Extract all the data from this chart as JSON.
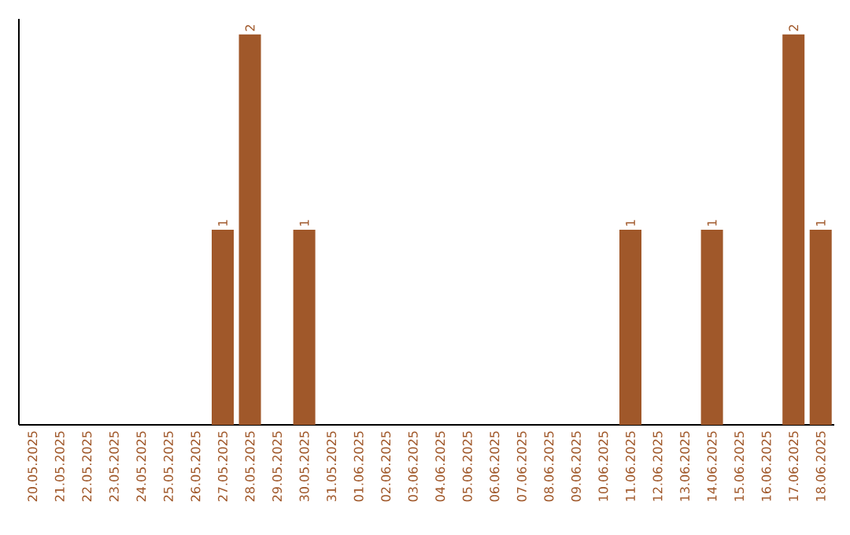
{
  "chart_data": {
    "type": "bar",
    "categories": [
      "20.05.2025",
      "21.05.2025",
      "22.05.2025",
      "23.05.2025",
      "24.05.2025",
      "25.05.2025",
      "26.05.2025",
      "27.05.2025",
      "28.05.2025",
      "29.05.2025",
      "30.05.2025",
      "31.05.2025",
      "01.06.2025",
      "02.06.2025",
      "03.06.2025",
      "04.06.2025",
      "05.06.2025",
      "06.06.2025",
      "07.06.2025",
      "08.06.2025",
      "09.06.2025",
      "10.06.2025",
      "11.06.2025",
      "12.06.2025",
      "13.06.2025",
      "14.06.2025",
      "15.06.2025",
      "16.06.2025",
      "17.06.2025",
      "18.06.2025"
    ],
    "values": [
      0,
      0,
      0,
      0,
      0,
      0,
      0,
      1,
      2,
      0,
      1,
      0,
      0,
      0,
      0,
      0,
      0,
      0,
      0,
      0,
      0,
      0,
      1,
      0,
      0,
      1,
      0,
      0,
      2,
      1
    ],
    "value_labels": [
      null,
      null,
      null,
      null,
      null,
      null,
      null,
      "1",
      "2",
      null,
      "1",
      null,
      null,
      null,
      null,
      null,
      null,
      null,
      null,
      null,
      null,
      null,
      "1",
      null,
      null,
      "1",
      null,
      null,
      "2",
      "1"
    ],
    "color": "#a0582a"
  }
}
